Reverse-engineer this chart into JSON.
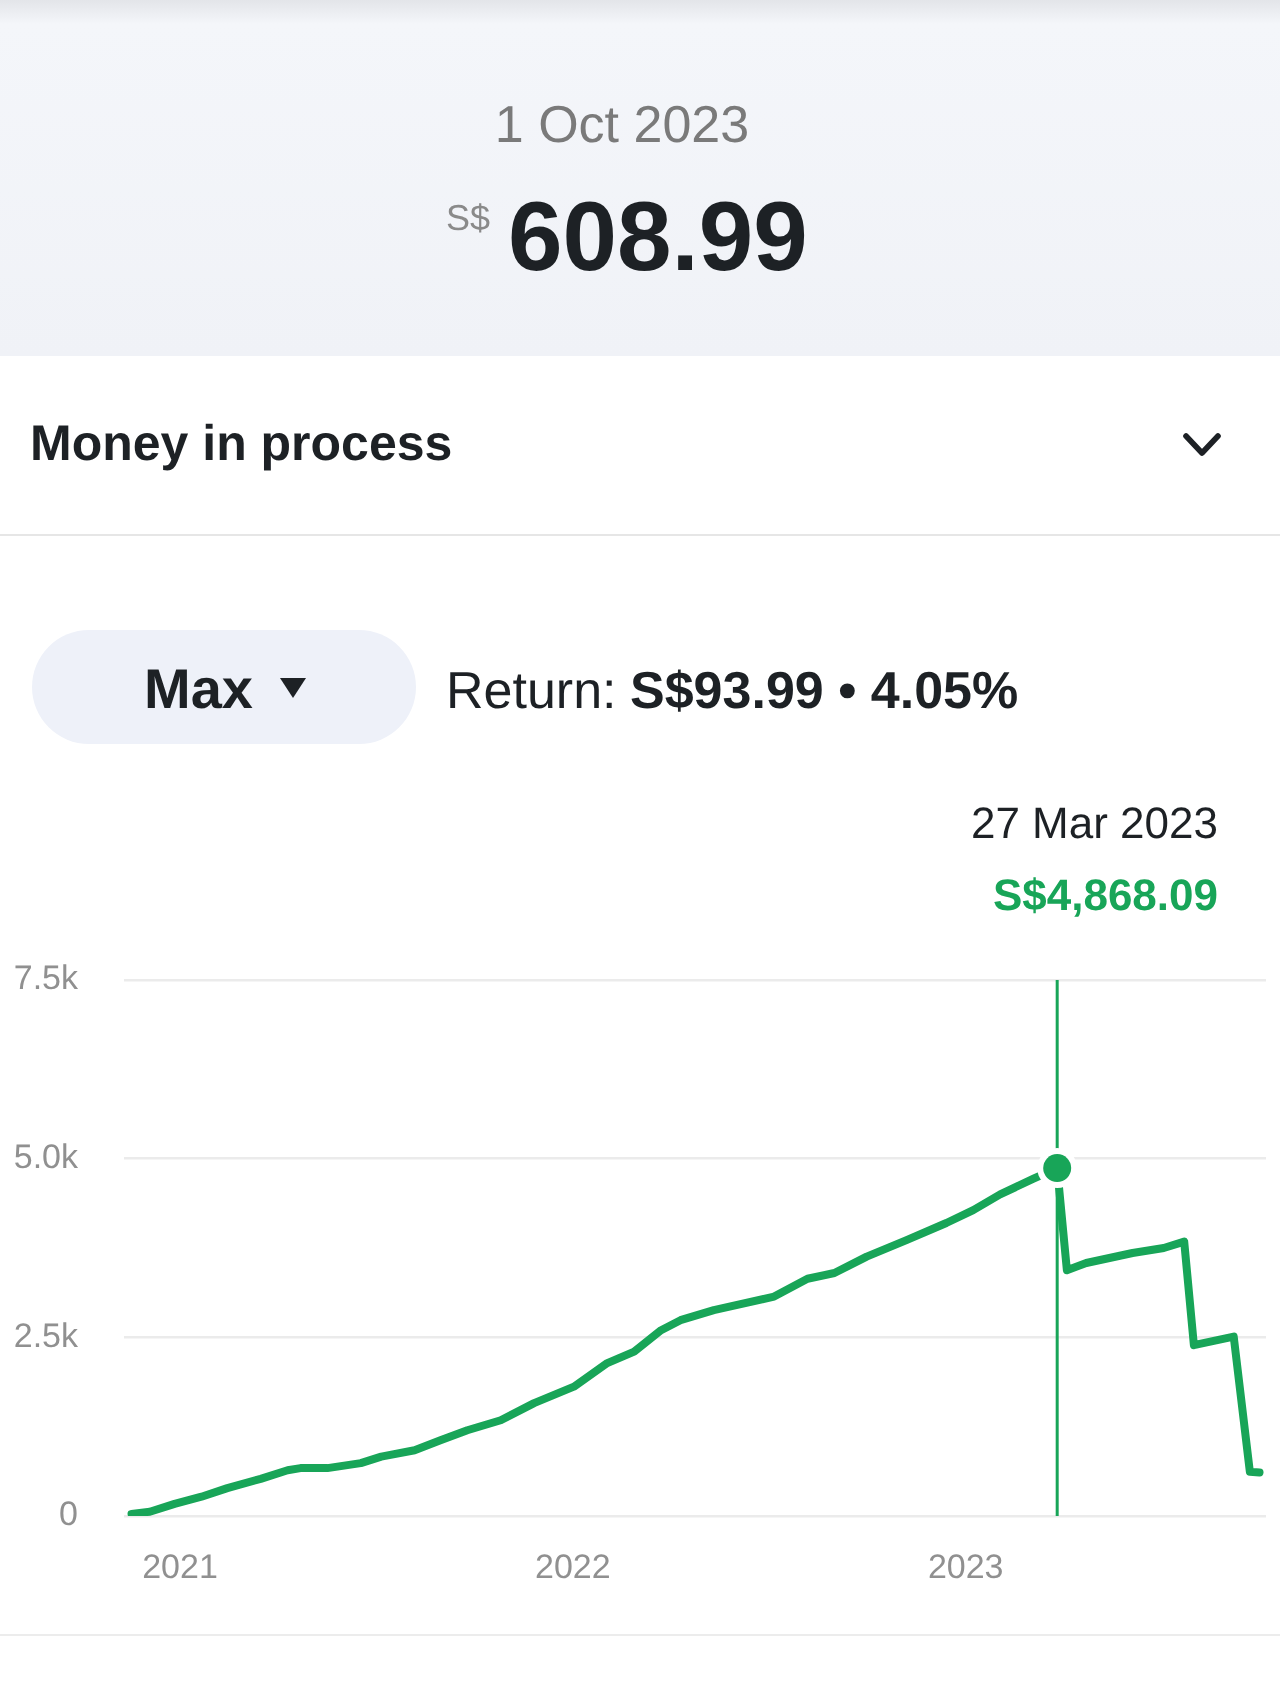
{
  "chart_data": {
    "type": "line",
    "annotations": [
      "1 Oct 2023",
      "S$",
      "608.99",
      "Money in process",
      "Max",
      "Return:",
      "S$93.99 • 4.05%",
      "27 Mar 2023",
      "S$4,868.09"
    ],
    "x": [
      "2020-11-17",
      "2020-12-04",
      "2020-12-27",
      "2021-01-21",
      "2021-02-14",
      "2021-03-17",
      "2021-04-11",
      "2021-04-23",
      "2021-05-18",
      "2021-06-18",
      "2021-07-07",
      "2021-08-07",
      "2021-08-31",
      "2021-09-25",
      "2021-10-26",
      "2021-11-26",
      "2022-01-02",
      "2022-02-02",
      "2022-02-27",
      "2022-03-24",
      "2022-04-11",
      "2022-05-12",
      "2022-07-07",
      "2022-08-07",
      "2022-09-01",
      "2022-10-01",
      "2022-11-07",
      "2022-12-14",
      "2023-01-08",
      "2023-02-02",
      "2023-03-05",
      "2023-03-27",
      "2023-04-05",
      "2023-04-23",
      "2023-06-05",
      "2023-07-04",
      "2023-07-23",
      "2023-08-01",
      "2023-09-07",
      "2023-09-22",
      "2023-10-01"
    ],
    "values": [
      30,
      60,
      170,
      270,
      390,
      520,
      640,
      670,
      670,
      740,
      830,
      920,
      1060,
      1200,
      1340,
      1580,
      1810,
      2140,
      2300,
      2600,
      2740,
      2880,
      3070,
      3320,
      3400,
      3630,
      3860,
      4100,
      4280,
      4500,
      4720,
      4868.09,
      3440,
      3540,
      3680,
      3750,
      3840,
      2390,
      2510,
      620,
      608.99
    ],
    "color": "#18a558",
    "xlim": [
      "2020-11-10",
      "2023-10-07"
    ],
    "xticks": [
      "2021",
      "2022",
      "2023"
    ],
    "ylim": [
      0,
      7500
    ],
    "yticks": [
      0,
      {
        "value": 2500,
        "label": "2.5k"
      },
      {
        "value": 5000,
        "label": "5.0k"
      },
      {
        "value": 7500,
        "label": "7.5k"
      }
    ],
    "grid": "y",
    "ref_lines": [
      {
        "axis": "x",
        "value": "2023-03-27",
        "color": "#18a558"
      }
    ]
  }
}
